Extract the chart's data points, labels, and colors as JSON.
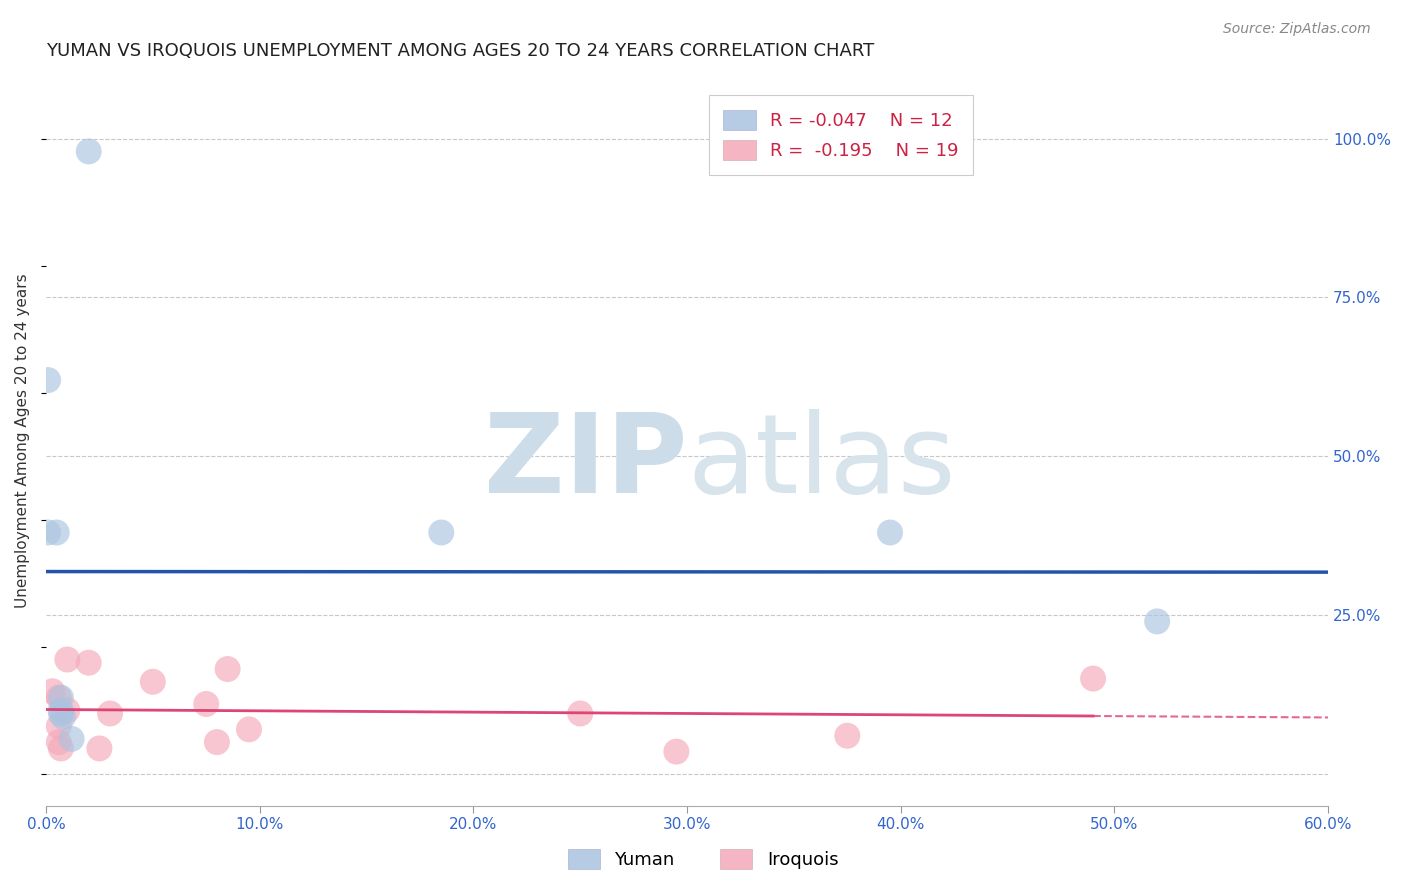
{
  "title": "YUMAN VS IROQUOIS UNEMPLOYMENT AMONG AGES 20 TO 24 YEARS CORRELATION CHART",
  "source": "Source: ZipAtlas.com",
  "ylabel": "Unemployment Among Ages 20 to 24 years",
  "xlim": [
    0.0,
    0.6
  ],
  "ylim": [
    -0.05,
    1.1
  ],
  "ytick_positions": [
    0.0,
    0.25,
    0.5,
    0.75,
    1.0
  ],
  "ytick_labels": [
    "",
    "25.0%",
    "50.0%",
    "75.0%",
    "100.0%"
  ],
  "xtick_vals": [
    0.0,
    0.1,
    0.2,
    0.3,
    0.4,
    0.5,
    0.6
  ],
  "grid_color": "#c8c8c8",
  "background_color": "#ffffff",
  "yuman_color": "#aac4e0",
  "iroquois_color": "#f4a8b8",
  "yuman_line_color": "#2255aa",
  "iroquois_line_color": "#dd4477",
  "legend_r_yuman": "R = -0.047",
  "legend_n_yuman": "N = 12",
  "legend_r_iroquois": "R =  -0.195",
  "legend_n_iroquois": "N = 19",
  "yuman_x": [
    0.02,
    0.001,
    0.001,
    0.005,
    0.007,
    0.007,
    0.007,
    0.008,
    0.012,
    0.185,
    0.395,
    0.52
  ],
  "yuman_y": [
    0.98,
    0.62,
    0.38,
    0.38,
    0.12,
    0.1,
    0.095,
    0.09,
    0.055,
    0.38,
    0.38,
    0.24
  ],
  "iroquois_x": [
    0.003,
    0.006,
    0.006,
    0.006,
    0.007,
    0.01,
    0.01,
    0.02,
    0.025,
    0.03,
    0.05,
    0.075,
    0.08,
    0.085,
    0.095,
    0.25,
    0.295,
    0.375,
    0.49
  ],
  "iroquois_y": [
    0.13,
    0.12,
    0.075,
    0.05,
    0.04,
    0.18,
    0.1,
    0.175,
    0.04,
    0.095,
    0.145,
    0.11,
    0.05,
    0.165,
    0.07,
    0.095,
    0.035,
    0.06,
    0.15
  ],
  "watermark_zip_color": "#ccdce8",
  "watermark_atlas_color": "#d8e4ec"
}
